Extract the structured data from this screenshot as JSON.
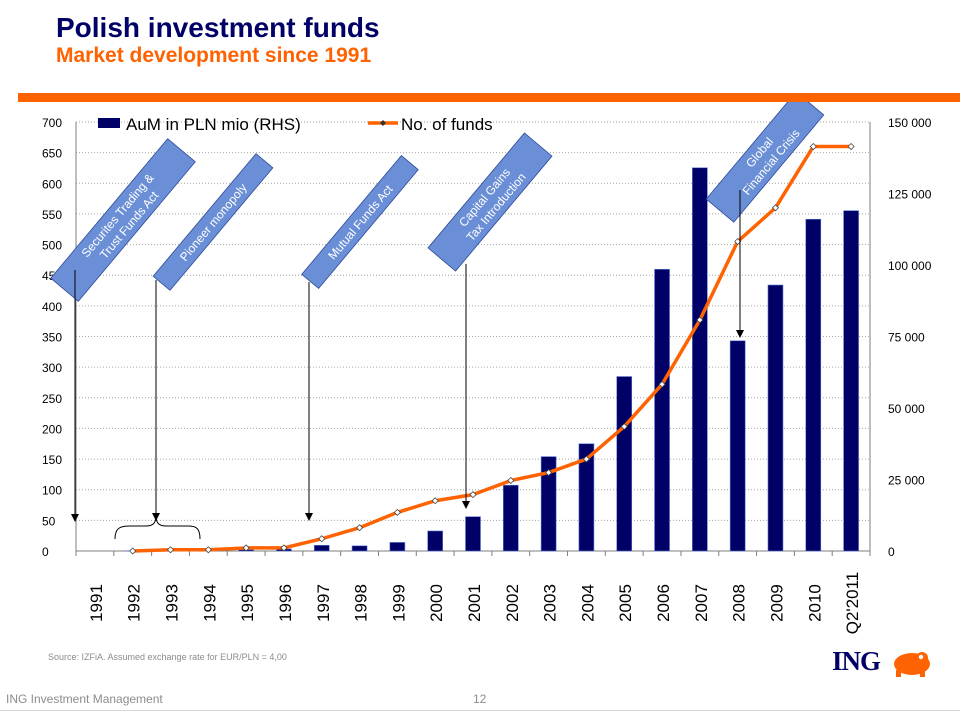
{
  "page": {
    "title": "Polish investment funds",
    "subtitle": "Market development since 1991",
    "source": "Source: IZFiA. Assumed exchange rate for EUR/PLN = 4,00",
    "footer_left": "ING Investment Management",
    "page_number": "12",
    "logo_text": "ING",
    "colors": {
      "navy": "#000066",
      "orange": "#FF6200",
      "annotation_fill": "#6B8FD6"
    }
  },
  "chart_data": {
    "type": "bar",
    "categories": [
      "1991",
      "1992",
      "1993",
      "1994",
      "1995",
      "1996",
      "1997",
      "1998",
      "1999",
      "2000",
      "2001",
      "2002",
      "2003",
      "2004",
      "2005",
      "2006",
      "2007",
      "2008",
      "2009",
      "2010",
      "Q2'2011"
    ],
    "series": [
      {
        "name": "AuM in PLN mio (RHS)",
        "type": "bar",
        "axis": "right",
        "color": "#000066",
        "values": [
          0,
          100,
          200,
          400,
          500,
          700,
          2000,
          1800,
          3000,
          7000,
          12000,
          23000,
          33000,
          37500,
          61000,
          98500,
          134000,
          73500,
          93000,
          116000,
          119000
        ]
      },
      {
        "name": "No. of funds",
        "type": "line",
        "axis": "left",
        "color": "#FF6200",
        "values": [
          null,
          0,
          2,
          2,
          5,
          5,
          20,
          38,
          63,
          82,
          92,
          115,
          128,
          150,
          203,
          272,
          377,
          505,
          560,
          660,
          660
        ]
      }
    ],
    "ylim_left": [
      0,
      700
    ],
    "yticks_left": [
      "0",
      "50",
      "100",
      "150",
      "200",
      "250",
      "300",
      "350",
      "400",
      "450",
      "500",
      "550",
      "600",
      "650",
      "700"
    ],
    "ylim_right": [
      0,
      150000
    ],
    "yticks_right": [
      "0",
      "25 000",
      "50 000",
      "75 000",
      "100 000",
      "125 000",
      "150 000"
    ],
    "legend_position": "top",
    "grid": true,
    "annotations": [
      {
        "label": "Securites Trading & Trust Funds Act",
        "year": "1991"
      },
      {
        "label": "Pioneer monopoly",
        "year": "1992–1994"
      },
      {
        "label": "Mutual Funds Act",
        "year": "1997"
      },
      {
        "label": "Capital Gains Tax Introduction",
        "year": "2001"
      },
      {
        "label": "Global Financial Crisis",
        "year": "2008"
      }
    ]
  }
}
